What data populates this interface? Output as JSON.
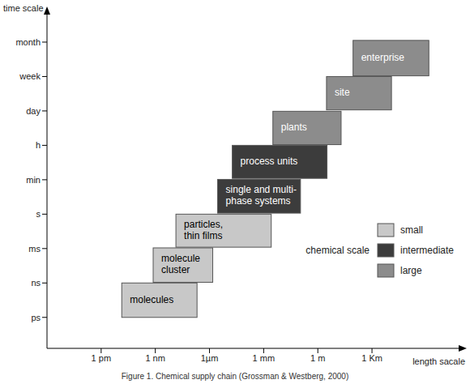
{
  "chart_data": {
    "type": "range",
    "title": "Figure 1. Chemical supply chain (Grossman & Westberg, 2000)",
    "x_label": "length sacale",
    "y_label": "time scale",
    "xlim": [
      -1,
      6.6
    ],
    "ylim": [
      -0.9,
      8.8
    ],
    "xticks": [
      {
        "value": 0,
        "label": "1 pm"
      },
      {
        "value": 1,
        "label": "1 nm"
      },
      {
        "value": 2,
        "label": "1µm"
      },
      {
        "value": 3,
        "label": "1 mm"
      },
      {
        "value": 4,
        "label": "1 m"
      },
      {
        "value": 5,
        "label": "1 Km"
      }
    ],
    "yticks": [
      {
        "value": 0,
        "label": "ps"
      },
      {
        "value": 1,
        "label": "ns"
      },
      {
        "value": 2,
        "label": "ms"
      },
      {
        "value": 3,
        "label": "s"
      },
      {
        "value": 4,
        "label": "min"
      },
      {
        "value": 5,
        "label": "h"
      },
      {
        "value": 6,
        "label": "day"
      },
      {
        "value": 7,
        "label": "week"
      },
      {
        "value": 8,
        "label": "month"
      }
    ],
    "legend": "right",
    "legend_title": "chemical scale",
    "series": [
      {
        "name": "small",
        "color": "#c8c8c8",
        "boxes": [
          {
            "label": [
              "molecules"
            ],
            "x": [
              0.38,
              1.77
            ],
            "y": [
              0,
              1
            ]
          },
          {
            "label": [
              "molecule",
              "cluster"
            ],
            "x": [
              0.96,
              2.06
            ],
            "y": [
              1.02,
              2.02
            ]
          },
          {
            "label": [
              "particles,",
              "thin films"
            ],
            "x": [
              1.38,
              3.14
            ],
            "y": [
              2.04,
              3
            ]
          }
        ]
      },
      {
        "name": "intermediate",
        "color": "#3c3c3c",
        "boxes": [
          {
            "label": [
              "single and multi-",
              "phase systems"
            ],
            "x": [
              2.15,
              3.68
            ],
            "y": [
              3.03,
              4.01
            ]
          },
          {
            "label": [
              "process units"
            ],
            "x": [
              2.42,
              4.17
            ],
            "y": [
              4.04,
              5
            ]
          }
        ]
      },
      {
        "name": "large",
        "color": "#8c8c8c",
        "boxes": [
          {
            "label": [
              "plants"
            ],
            "x": [
              3.17,
              4.43
            ],
            "y": [
              5.02,
              5.99
            ]
          },
          {
            "label": [
              "site"
            ],
            "x": [
              4.16,
              5.36
            ],
            "y": [
              6.03,
              7
            ]
          },
          {
            "label": [
              "enterprise"
            ],
            "x": [
              4.65,
              6.05
            ],
            "y": [
              7.02,
              8.05
            ]
          }
        ]
      }
    ]
  }
}
